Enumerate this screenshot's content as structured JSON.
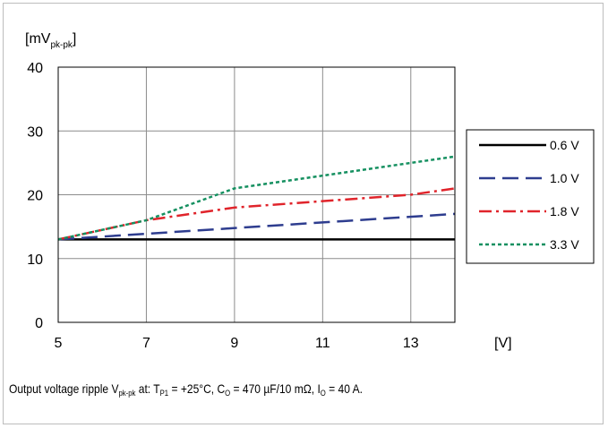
{
  "chart_data": {
    "type": "line",
    "ylabel": "[mV",
    "ylabel_sub": "pk-pk",
    "ylabel_close": "]",
    "xlabel": "[V]",
    "xlim": [
      5,
      14
    ],
    "ylim": [
      0,
      40
    ],
    "x_ticks": [
      5,
      7,
      9,
      11,
      13
    ],
    "y_ticks": [
      0,
      10,
      20,
      30,
      40
    ],
    "grid": true,
    "legend_position": "right",
    "series": [
      {
        "name": "0.6 V",
        "color": "#000000",
        "dash": "solid",
        "x": [
          5,
          14
        ],
        "y": [
          13,
          13
        ]
      },
      {
        "name": "1.0 V",
        "color": "#2e3d8f",
        "dash": "dash",
        "x": [
          5,
          14
        ],
        "y": [
          13,
          17
        ]
      },
      {
        "name": "1.8 V",
        "color": "#e0242b",
        "dash": "dashdot",
        "x": [
          5,
          7,
          9,
          13,
          14
        ],
        "y": [
          13,
          16,
          18,
          20,
          21
        ]
      },
      {
        "name": "3.3 V",
        "color": "#159060",
        "dash": "dot",
        "x": [
          5,
          7,
          9,
          14
        ],
        "y": [
          13,
          16,
          21,
          26
        ]
      }
    ]
  },
  "caption": {
    "t1": "Output voltage ripple V",
    "s1": "pk-pk",
    "t2": " at: T",
    "s2": "P1",
    "t3": " = +25°C, C",
    "s3": "O",
    "t4": " = 470 µF/10 mΩ, I",
    "s4": "O",
    "t5": " = 40 A."
  }
}
